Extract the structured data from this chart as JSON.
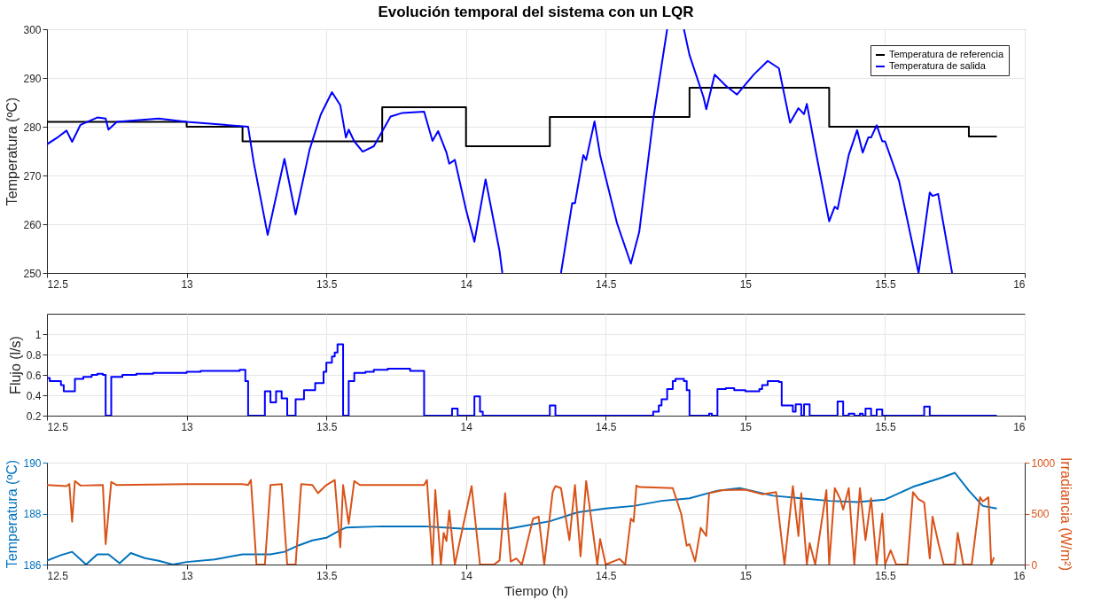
{
  "chart_data": [
    {
      "type": "line",
      "title": "Evolución temporal del sistema con un LQR",
      "ylabel": "Temperatura (ºC)",
      "xlim": [
        12.5,
        16
      ],
      "xticks": [
        12.5,
        13,
        13.5,
        14,
        14.5,
        15,
        15.5,
        16
      ],
      "ylim": [
        250,
        300
      ],
      "yticks": [
        250,
        260,
        270,
        280,
        290,
        300
      ],
      "grid": true,
      "legend": "top right",
      "line_style": "solid",
      "series": [
        {
          "name": "Temperatura de referencia",
          "type": "step",
          "color": "#000000",
          "x": [
            12.5,
            12.5,
            13.0,
            13.2,
            13.7,
            14.0,
            14.3,
            14.8,
            15.3,
            15.8,
            15.9
          ],
          "values": [
            277,
            281,
            280,
            277,
            284,
            276,
            282,
            288,
            280,
            278,
            278
          ]
        },
        {
          "name": "Temperatura de salida",
          "type": "line",
          "color": "#0000ff",
          "x": [
            12.5,
            12.54,
            12.57,
            12.59,
            12.62,
            12.68,
            12.71,
            12.72,
            12.75,
            12.9,
            13.0,
            13.2,
            13.22,
            13.24,
            13.29,
            13.35,
            13.39,
            13.44,
            13.48,
            13.52,
            13.55,
            13.57,
            13.58,
            13.6,
            13.63,
            13.67,
            13.73,
            13.77,
            13.85,
            13.88,
            13.9,
            13.93,
            13.94,
            13.96,
            14.0,
            14.03,
            14.07,
            14.12,
            14.13,
            14.15,
            14.34,
            14.38,
            14.39,
            14.42,
            14.43,
            14.46,
            14.48,
            14.54,
            14.59,
            14.62,
            14.67,
            14.72,
            14.75,
            14.78,
            14.8,
            14.85,
            14.86,
            14.89,
            14.93,
            14.97,
            15.03,
            15.08,
            15.12,
            15.16,
            15.19,
            15.21,
            15.22,
            15.25,
            15.3,
            15.32,
            15.33,
            15.37,
            15.4,
            15.42,
            15.44,
            15.45,
            15.47,
            15.49,
            15.5,
            15.55,
            15.62,
            15.66,
            15.67,
            15.69,
            15.74
          ],
          "values": [
            276.4,
            277.9,
            279.2,
            276.9,
            280.4,
            281.9,
            281.7,
            279.4,
            281.0,
            281.7,
            281.0,
            280.1,
            280.0,
            272.7,
            257.8,
            273.4,
            262.0,
            275.3,
            282.5,
            287.1,
            284.4,
            277.8,
            279.4,
            277.0,
            274.9,
            276.0,
            282.1,
            282.8,
            283.1,
            277.1,
            279.1,
            274.7,
            272.4,
            273.2,
            263.0,
            256.4,
            269.2,
            254.5,
            250,
            null,
            250,
            264.3,
            264.3,
            274.2,
            273.2,
            281.1,
            274.2,
            260.3,
            251.9,
            258.4,
            281.5,
            300,
            null,
            300,
            294.7,
            286.1,
            283.6,
            290.7,
            288.4,
            286.6,
            290.7,
            293.5,
            292.0,
            280.8,
            283.8,
            282.6,
            284.7,
            275.5,
            260.6,
            263.6,
            263.1,
            274.2,
            279.3,
            274.7,
            277.8,
            277.8,
            280.3,
            277.0,
            277.0,
            268.9,
            250,
            266.5,
            265.8,
            266.2,
            250
          ]
        }
      ]
    },
    {
      "type": "step",
      "ylabel": "Flujo (l/s)",
      "xlim": [
        12.5,
        16
      ],
      "xticks": [
        12.5,
        13,
        13.5,
        14,
        14.5,
        15,
        15.5,
        16
      ],
      "ylim": [
        0.2,
        1.2
      ],
      "yticks": [
        0.2,
        0.4,
        0.6,
        0.8,
        1
      ],
      "grid": true,
      "line_style": "solid",
      "series": [
        {
          "color": "#0000ff",
          "x": [
            12.5,
            12.51,
            12.55,
            12.56,
            12.58,
            12.6,
            12.63,
            12.66,
            12.68,
            12.7,
            12.71,
            12.73,
            12.77,
            12.82,
            12.88,
            12.95,
            13.0,
            13.05,
            13.19,
            13.21,
            13.22,
            13.28,
            13.3,
            13.32,
            13.34,
            13.36,
            13.39,
            13.42,
            13.46,
            13.49,
            13.5,
            13.52,
            13.53,
            13.54,
            13.56,
            13.58,
            13.6,
            13.64,
            13.67,
            13.72,
            13.8,
            13.85,
            13.95,
            13.97,
            14.03,
            14.05,
            14.06,
            14.3,
            14.32,
            14.67,
            14.69,
            14.7,
            14.72,
            14.74,
            14.75,
            14.78,
            14.79,
            14.8,
            14.87,
            14.88,
            14.9,
            14.93,
            14.96,
            15.0,
            15.05,
            15.06,
            15.08,
            15.12,
            15.13,
            15.17,
            15.18,
            15.2,
            15.21,
            15.23,
            15.33,
            15.35,
            15.37,
            15.39,
            15.41,
            15.42,
            15.43,
            15.45,
            15.47,
            15.49,
            15.64,
            15.66,
            15.9
          ],
          "values": [
            0.57,
            0.54,
            0.5,
            0.44,
            0.44,
            0.56,
            0.58,
            0.6,
            0.61,
            0.6,
            0.2,
            0.58,
            0.6,
            0.61,
            0.62,
            0.62,
            0.63,
            0.64,
            0.65,
            0.54,
            0.2,
            0.44,
            0.33,
            0.44,
            0.37,
            0.2,
            0.36,
            0.45,
            0.52,
            0.63,
            0.72,
            0.78,
            0.82,
            0.9,
            0.2,
            0.54,
            0.62,
            0.63,
            0.65,
            0.66,
            0.64,
            0.2,
            0.27,
            0.2,
            0.39,
            0.24,
            0.2,
            0.3,
            0.2,
            0.24,
            0.3,
            0.36,
            0.46,
            0.54,
            0.56,
            0.54,
            0.45,
            0.2,
            0.22,
            0.2,
            0.46,
            0.47,
            0.45,
            0.44,
            0.46,
            0.5,
            0.54,
            0.53,
            0.3,
            0.24,
            0.31,
            0.2,
            0.31,
            0.2,
            0.34,
            0.2,
            0.22,
            0.2,
            0.22,
            0.2,
            0.27,
            0.2,
            0.26,
            0.2,
            0.29,
            0.2,
            0.2
          ]
        }
      ]
    },
    {
      "type": "line",
      "xlabel": "Tiempo (h)",
      "ylabel": "Temperatura (ºC)",
      "y2label": "Irradiancia (W/m²)",
      "xlim": [
        12.5,
        16
      ],
      "xticks": [
        12.5,
        13,
        13.5,
        14,
        14.5,
        15,
        15.5,
        16
      ],
      "ylim": [
        186,
        190
      ],
      "yticks": [
        186,
        188,
        190
      ],
      "y2lim": [
        0,
        1000
      ],
      "y2ticks": [
        0,
        500,
        1000
      ],
      "grid": true,
      "line_style": "solid",
      "series": [
        {
          "color": "#0072bd",
          "x": [
            12.5,
            12.55,
            12.59,
            12.62,
            12.64,
            12.68,
            12.72,
            12.76,
            12.8,
            12.85,
            12.9,
            12.95,
            13.0,
            13.1,
            13.2,
            13.3,
            13.35,
            13.4,
            13.45,
            13.5,
            13.55,
            13.57,
            13.7,
            13.8,
            13.85,
            14.0,
            14.15,
            14.25,
            14.3,
            14.4,
            14.5,
            14.6,
            14.7,
            14.8,
            14.9,
            14.98,
            15.1,
            15.2,
            15.3,
            15.4,
            15.5,
            15.6,
            15.7,
            15.75,
            15.8,
            15.85,
            15.9
          ],
          "values": [
            186.15,
            186.37,
            186.5,
            186.2,
            186.0,
            186.4,
            186.4,
            186.05,
            186.45,
            186.25,
            186.15,
            186.0,
            186.1,
            186.2,
            186.4,
            186.4,
            186.5,
            186.75,
            186.95,
            187.05,
            187.35,
            187.45,
            187.5,
            187.5,
            187.5,
            187.4,
            187.4,
            187.6,
            187.7,
            188.05,
            188.2,
            188.3,
            188.5,
            188.6,
            188.9,
            189.0,
            188.7,
            188.6,
            188.5,
            188.45,
            188.55,
            189.05,
            189.4,
            189.6,
            188.9,
            188.3,
            188.2
          ]
        },
        {
          "color": "#d95319",
          "axis": "y2",
          "x": [
            12.5,
            12.57,
            12.58,
            12.59,
            12.6,
            12.62,
            12.7,
            12.71,
            12.73,
            12.75,
            13.0,
            13.2,
            13.22,
            13.23,
            13.25,
            13.28,
            13.3,
            13.34,
            13.36,
            13.39,
            13.41,
            13.45,
            13.47,
            13.5,
            13.53,
            13.55,
            13.56,
            13.58,
            13.6,
            13.62,
            13.85,
            13.86,
            13.88,
            13.89,
            13.91,
            13.92,
            13.93,
            13.94,
            13.96,
            14.02,
            14.05,
            14.1,
            14.12,
            14.14,
            14.16,
            14.18,
            14.2,
            14.24,
            14.26,
            14.28,
            14.31,
            14.32,
            14.34,
            14.37,
            14.39,
            14.41,
            14.43,
            14.47,
            14.48,
            14.5,
            14.55,
            14.57,
            14.59,
            14.6,
            14.61,
            14.62,
            14.74,
            14.77,
            14.79,
            14.8,
            14.82,
            14.84,
            14.86,
            14.87,
            14.92,
            15.0,
            15.06,
            15.11,
            15.14,
            15.17,
            15.19,
            15.2,
            15.22,
            15.23,
            15.25,
            15.29,
            15.3,
            15.32,
            15.34,
            15.35,
            15.37,
            15.39,
            15.41,
            15.43,
            15.45,
            15.47,
            15.49,
            15.5,
            15.52,
            15.54,
            15.58,
            15.6,
            15.62,
            15.64,
            15.66,
            15.67,
            15.69,
            15.71,
            15.75,
            15.76,
            15.78,
            15.81,
            15.84,
            15.85,
            15.87,
            15.88,
            15.89
          ],
          "values": [
            780,
            770,
            790,
            420,
            820,
            775,
            780,
            200,
            810,
            780,
            790,
            790,
            780,
            830,
            0,
            0,
            780,
            790,
            0,
            0,
            790,
            780,
            700,
            780,
            830,
            170,
            780,
            400,
            820,
            780,
            780,
            830,
            0,
            730,
            0,
            310,
            230,
            530,
            0,
            770,
            0,
            0,
            40,
            700,
            30,
            60,
            0,
            450,
            470,
            0,
            710,
            770,
            750,
            240,
            780,
            80,
            820,
            0,
            250,
            0,
            55,
            0,
            450,
            420,
            775,
            760,
            750,
            500,
            185,
            200,
            30,
            360,
            280,
            700,
            730,
            735,
            690,
            710,
            0,
            770,
            280,
            700,
            0,
            210,
            0,
            730,
            0,
            750,
            640,
            540,
            750,
            0,
            750,
            240,
            650,
            0,
            500,
            0,
            140,
            0,
            0,
            710,
            640,
            610,
            60,
            470,
            220,
            0,
            0,
            310,
            0,
            0,
            660,
            620,
            660,
            0,
            70
          ]
        }
      ]
    }
  ]
}
